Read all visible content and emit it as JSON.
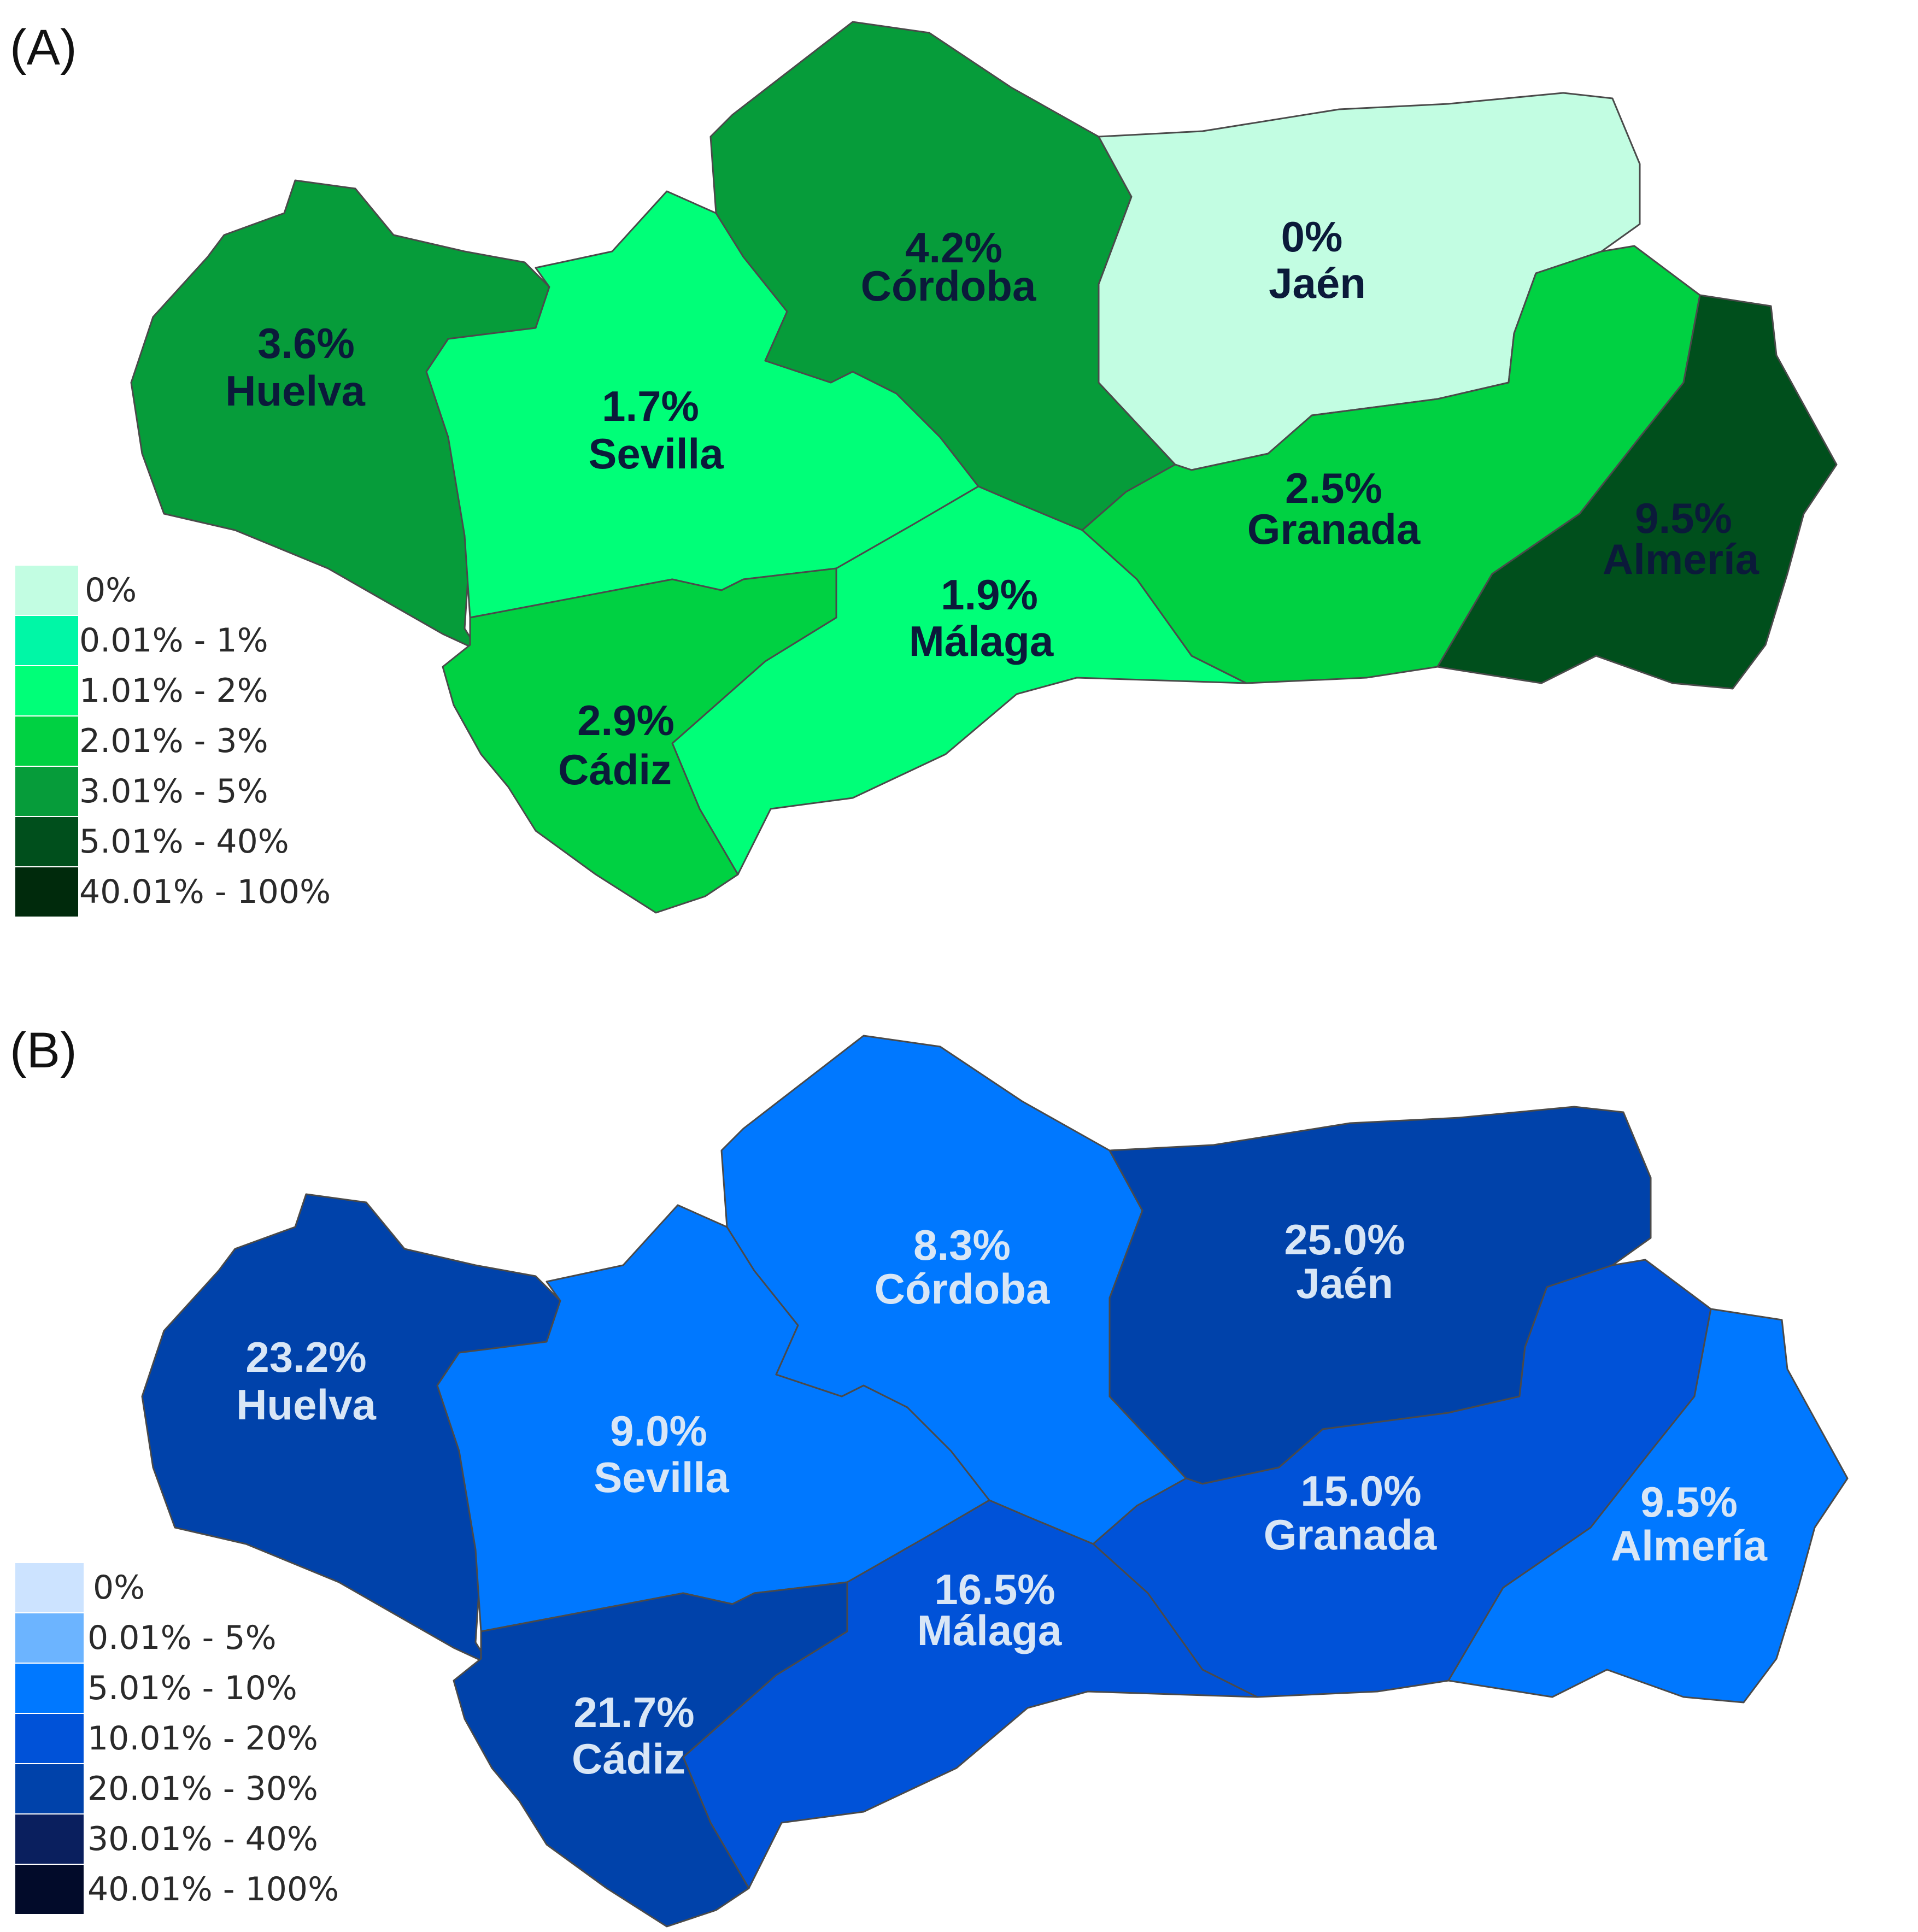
{
  "panels": [
    {
      "label": "(A)",
      "label_color": "#0b1a3a",
      "provinces": [
        {
          "id": "huelva",
          "name": "Huelva",
          "value": "3.6%",
          "color": "#069c3a"
        },
        {
          "id": "sevilla",
          "name": "Sevilla",
          "value": "1.7%",
          "color": "#00ff78"
        },
        {
          "id": "cordoba",
          "name": "Córdoba",
          "value": "4.2%",
          "color": "#069c3a"
        },
        {
          "id": "jaen",
          "name": "Jaén",
          "value": "0%",
          "color": "#c2fde2"
        },
        {
          "id": "granada",
          "name": "Granada",
          "value": "2.5%",
          "color": "#00d142"
        },
        {
          "id": "almeria",
          "name": "Almería",
          "value": "9.5%",
          "color": "#004f1c"
        },
        {
          "id": "malaga",
          "name": "Málaga",
          "value": "1.9%",
          "color": "#00ff78"
        },
        {
          "id": "cadiz",
          "name": "Cádiz",
          "value": "2.9%",
          "color": "#00d142"
        }
      ],
      "legend": [
        {
          "label": "0%",
          "color": "#c2fde2"
        },
        {
          "label": "0.01% - 1%",
          "color": "#00f7a6"
        },
        {
          "label": "1.01% - 2%",
          "color": "#00ff78"
        },
        {
          "label": "2.01% - 3%",
          "color": "#00d142"
        },
        {
          "label": "3.01% - 5%",
          "color": "#069c3a"
        },
        {
          "label": "5.01% - 40%",
          "color": "#004f1c"
        },
        {
          "label": "40.01% - 100%",
          "color": "#002a0c"
        }
      ]
    },
    {
      "label": "(B)",
      "label_color": "#d8e6f6",
      "provinces": [
        {
          "id": "huelva",
          "name": "Huelva",
          "value": "23.2%",
          "color": "#0042aa"
        },
        {
          "id": "sevilla",
          "name": "Sevilla",
          "value": "9.0%",
          "color": "#0078ff"
        },
        {
          "id": "cordoba",
          "name": "Córdoba",
          "value": "8.3%",
          "color": "#0078ff"
        },
        {
          "id": "jaen",
          "name": "Jaén",
          "value": "25.0%",
          "color": "#0042aa"
        },
        {
          "id": "granada",
          "name": "Granada",
          "value": "15.0%",
          "color": "#0052d8"
        },
        {
          "id": "almeria",
          "name": "Almería",
          "value": "9.5%",
          "color": "#0078ff"
        },
        {
          "id": "malaga",
          "name": "Málaga",
          "value": "16.5%",
          "color": "#0052d8"
        },
        {
          "id": "cadiz",
          "name": "Cádiz",
          "value": "21.7%",
          "color": "#0042aa"
        }
      ],
      "legend": [
        {
          "label": "0%",
          "color": "#cce3ff"
        },
        {
          "label": "0.01% - 5%",
          "color": "#6cb4ff"
        },
        {
          "label": "5.01% - 10%",
          "color": "#0078ff"
        },
        {
          "label": "10.01% - 20%",
          "color": "#0052d8"
        },
        {
          "label": "20.01% - 30%",
          "color": "#0042aa"
        },
        {
          "label": "30.01% - 40%",
          "color": "#0a1f5e"
        },
        {
          "label": "40.01% - 100%",
          "color": "#020b2a"
        }
      ]
    }
  ]
}
